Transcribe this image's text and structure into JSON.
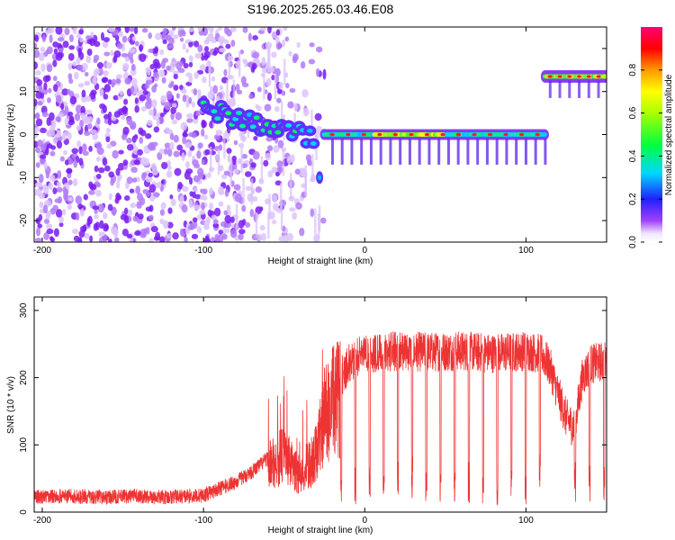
{
  "title": "S196.2025.265.03.46.E08",
  "chart_data": [
    {
      "type": "heatmap",
      "xlabel": "Height of straight line (km)",
      "ylabel": "Frequency (Hz)",
      "xlim": [
        -205,
        150
      ],
      "ylim": [
        -25,
        25
      ],
      "xticks": [
        -200,
        -100,
        0,
        100
      ],
      "yticks": [
        -20,
        -10,
        0,
        10,
        20
      ],
      "colorbar": {
        "label": "Normalized spectral amplitude",
        "range": [
          0,
          1
        ],
        "ticks": [
          "0.0",
          "0.2",
          "0.4",
          "0.6",
          "0.8"
        ],
        "tick_values": [
          0,
          0.2,
          0.4,
          0.6,
          0.8
        ]
      },
      "features": [
        {
          "name": "noise",
          "x_range": [
            -205,
            -25
          ],
          "frequency": "broadband"
        },
        {
          "name": "descending-track",
          "x_range": [
            -100,
            -30
          ],
          "frequency": [
            4,
            -3
          ]
        },
        {
          "name": "steady-track",
          "x_range": [
            -25,
            112
          ],
          "frequency": 0
        },
        {
          "name": "upper-track",
          "x_range": [
            112,
            150
          ],
          "frequency": 13.5
        }
      ]
    },
    {
      "type": "line",
      "xlabel": "Height of straight line (km)",
      "ylabel": "SNR (10 * v/v)",
      "xlim": [
        -205,
        150
      ],
      "ylim": [
        0,
        320
      ],
      "xticks": [
        -200,
        -100,
        0,
        100
      ],
      "yticks": [
        0,
        100,
        200,
        300
      ],
      "series": [
        {
          "name": "SNR",
          "color": "#ee3333",
          "x": [
            -205,
            -190,
            -175,
            -160,
            -145,
            -130,
            -115,
            -100,
            -90,
            -80,
            -70,
            -60,
            -50,
            -40,
            -30,
            -25,
            -20,
            -15,
            -10,
            -5,
            0,
            10,
            20,
            40,
            60,
            80,
            100,
            110,
            115,
            120,
            125,
            130,
            135,
            140,
            150
          ],
          "y": [
            22,
            24,
            23,
            22,
            24,
            22,
            23,
            25,
            35,
            45,
            60,
            80,
            100,
            60,
            100,
            170,
            190,
            200,
            220,
            230,
            240,
            235,
            240,
            238,
            240,
            236,
            240,
            235,
            215,
            175,
            140,
            125,
            200,
            220,
            225
          ]
        }
      ]
    }
  ]
}
